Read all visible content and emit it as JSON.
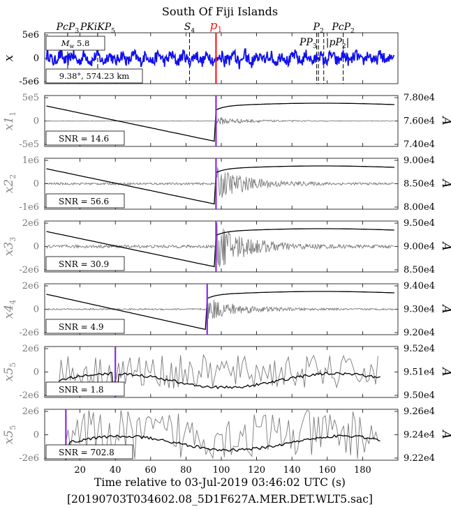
{
  "chart_data": {
    "type": "line",
    "title": "South Of Fiji Islands",
    "xlabel": "Time relative to 03-Jul-2019 03:46:02 UTC (s)",
    "filename": "[20190703T034602.08_5D1F627A.MER.DET.WLT5.sac]",
    "xlim": [
      0,
      200
    ],
    "xticks": [
      20,
      40,
      60,
      80,
      100,
      120,
      140,
      160,
      180
    ],
    "phases": [
      {
        "label": "PcP3",
        "t": 13
      },
      {
        "label": "PKiKP5",
        "t": 30
      },
      {
        "label": "S4",
        "t": 82
      },
      {
        "label": "p1",
        "t": 97
      },
      {
        "label": "PP3",
        "t": 154
      },
      {
        "label": "P2",
        "t": 155
      },
      {
        "label": "pP2",
        "t": 158
      },
      {
        "label": "PcP2",
        "t": 169
      }
    ],
    "magnitude": "5.8",
    "distance": "9.38°, 574.23 km",
    "panels": [
      {
        "name": "x",
        "ylabel": "x",
        "yticks": [
          "5e6",
          "0",
          "-5e6"
        ],
        "amp": 0.32,
        "pick": 97,
        "signal": "seismogram",
        "right_axis": null,
        "snr": null
      },
      {
        "name": "x1",
        "ylabel": "x1",
        "yticks": [
          "5e5",
          "0",
          "-5e5"
        ],
        "amp": 0.09,
        "pick": 97,
        "signal": "noise-burst",
        "right_axis": {
          "label": "A",
          "ticks": [
            "7.80e4",
            "7.60e4",
            "7.40e4"
          ]
        },
        "snr": "SNR  =  14.6"
      },
      {
        "name": "x2",
        "ylabel": "x2",
        "yticks": [
          "1e6",
          "0",
          "-1e6"
        ],
        "amp": 0.35,
        "pick": 97,
        "signal": "noise-burst",
        "right_axis": {
          "label": "A",
          "ticks": [
            "9.00e4",
            "8.50e4",
            "8.00e4"
          ]
        },
        "snr": "SNR  =  56.6"
      },
      {
        "name": "x3",
        "ylabel": "x3",
        "yticks": [
          "2e6",
          "0",
          "-2e6"
        ],
        "amp": 0.5,
        "pick": 97,
        "signal": "noise-burst",
        "right_axis": {
          "label": "A",
          "ticks": [
            "9.50e4",
            "9.00e4",
            "8.50e4"
          ]
        },
        "snr": "SNR  =  30.9"
      },
      {
        "name": "x4",
        "ylabel": "x4",
        "yticks": [
          "2e6",
          "0",
          "-2e6"
        ],
        "amp": 0.25,
        "pick": 92,
        "signal": "noise-burst",
        "right_axis": {
          "label": "A",
          "ticks": [
            "9.40e4",
            "9.30e4",
            "9.20e4"
          ]
        },
        "snr": "SNR  =  4.9"
      },
      {
        "name": "x5",
        "ylabel": "x5",
        "yticks": [
          "2e6",
          "0",
          "-2e6"
        ],
        "amp": 0.42,
        "pick": 40,
        "signal": "coarse",
        "right_axis": {
          "label": "A",
          "ticks": [
            "9.52e4",
            "9.51e4",
            "9.50e4"
          ]
        },
        "snr": "SNR  =  1.8"
      },
      {
        "name": "x5bar",
        "ylabel": "x5",
        "yticks": [
          "2e6",
          "0",
          "-2e6"
        ],
        "amp": 0.6,
        "pick": 12,
        "signal": "coarse",
        "right_axis": {
          "label": "A",
          "ticks": [
            "9.26e4",
            "9.24e4",
            "9.22e4"
          ]
        },
        "snr": "SNR  =  702.8"
      }
    ]
  }
}
